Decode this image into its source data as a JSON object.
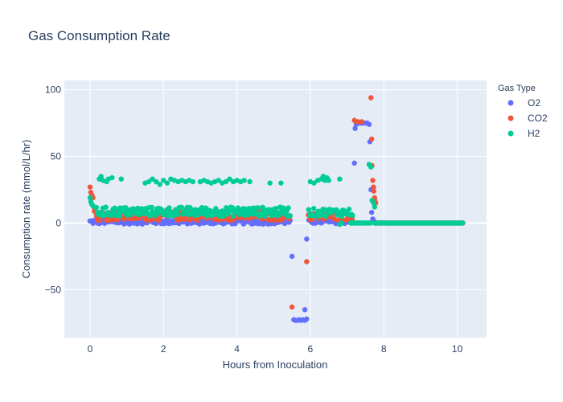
{
  "chart_data": {
    "type": "scatter",
    "title": "Gas Consumption Rate",
    "xlabel": "Hours from Inoculation",
    "ylabel": "Consumption rate (mmol/L/hr)",
    "xlim": [
      -0.7,
      10.8
    ],
    "ylim": [
      -86,
      107
    ],
    "xticks": [
      0,
      2,
      4,
      6,
      8,
      10
    ],
    "yticks": [
      -50,
      0,
      50,
      100
    ],
    "ytick_labels": [
      "−50",
      "0",
      "50",
      "100"
    ],
    "grid": true,
    "legend_title": "Gas Type",
    "legend_position": "top-right",
    "colors": {
      "plot_bg": "#e5ecf6",
      "grid": "#ffffff"
    },
    "series": [
      {
        "name": "O2",
        "color": "#636efa",
        "segments": [
          {
            "x_start": 0.0,
            "x_end": 5.45,
            "step": 0.025,
            "base": 1.0,
            "jitter": 1.8
          },
          {
            "x_start": 5.95,
            "x_end": 7.05,
            "step": 0.03,
            "base": 1.0,
            "jitter": 1.5
          },
          {
            "x_start": 7.75,
            "x_end": 10.15,
            "step": 0.02,
            "base": 0.0,
            "jitter": 0.0
          }
        ],
        "points": [
          [
            5.5,
            -25
          ],
          [
            5.55,
            -72.5
          ],
          [
            5.6,
            -73
          ],
          [
            5.65,
            -73
          ],
          [
            5.7,
            -72.5
          ],
          [
            5.75,
            -73
          ],
          [
            5.8,
            -72.5
          ],
          [
            5.85,
            -73
          ],
          [
            5.9,
            -72
          ],
          [
            5.85,
            -65
          ],
          [
            5.9,
            -12
          ],
          [
            7.2,
            45
          ],
          [
            7.22,
            71
          ],
          [
            7.25,
            74
          ],
          [
            7.3,
            75
          ],
          [
            7.35,
            75
          ],
          [
            7.4,
            75
          ],
          [
            7.45,
            75
          ],
          [
            7.5,
            75
          ],
          [
            7.55,
            75
          ],
          [
            7.6,
            74
          ],
          [
            7.62,
            61
          ],
          [
            7.65,
            25
          ],
          [
            7.67,
            8
          ],
          [
            7.7,
            3
          ],
          [
            7.72,
            2
          ]
        ]
      },
      {
        "name": "CO2",
        "color": "#ef553b",
        "segments": [
          {
            "x_start": 0.15,
            "x_end": 5.45,
            "step": 0.025,
            "base": 5.5,
            "jitter": 3.5
          },
          {
            "x_start": 5.95,
            "x_end": 7.15,
            "step": 0.03,
            "base": 5.0,
            "jitter": 3.0
          },
          {
            "x_start": 7.75,
            "x_end": 10.15,
            "step": 0.02,
            "base": 0.0,
            "jitter": 0.0
          }
        ],
        "points": [
          [
            0.0,
            27
          ],
          [
            0.02,
            23
          ],
          [
            0.05,
            21
          ],
          [
            0.08,
            19
          ],
          [
            0.1,
            12
          ],
          [
            0.12,
            9
          ],
          [
            5.5,
            -63
          ],
          [
            5.9,
            -29
          ],
          [
            7.2,
            77
          ],
          [
            7.25,
            76
          ],
          [
            7.3,
            76
          ],
          [
            7.4,
            76
          ],
          [
            7.65,
            94
          ],
          [
            7.67,
            63
          ],
          [
            7.68,
            43
          ],
          [
            7.7,
            32
          ],
          [
            7.72,
            27
          ],
          [
            7.73,
            24
          ],
          [
            7.75,
            19
          ],
          [
            7.76,
            17
          ],
          [
            7.78,
            15
          ]
        ]
      },
      {
        "name": "H2",
        "color": "#00cc96",
        "segments": [
          {
            "x_start": 0.15,
            "x_end": 5.45,
            "step": 0.025,
            "base": 8.5,
            "jitter": 3.5
          },
          {
            "x_start": 5.95,
            "x_end": 7.15,
            "step": 0.03,
            "base": 8.0,
            "jitter": 3.0
          },
          {
            "x_start": 7.1,
            "x_end": 7.65,
            "step": 0.015,
            "base": 0.0,
            "jitter": 0.0
          },
          {
            "x_start": 7.75,
            "x_end": 10.15,
            "step": 0.02,
            "base": 0.0,
            "jitter": 0.0
          }
        ],
        "points": [
          [
            0.0,
            19
          ],
          [
            0.02,
            16
          ],
          [
            0.05,
            14
          ],
          [
            0.08,
            13
          ],
          [
            0.25,
            33
          ],
          [
            0.3,
            35
          ],
          [
            0.35,
            32
          ],
          [
            0.45,
            31
          ],
          [
            0.5,
            33
          ],
          [
            0.6,
            34
          ],
          [
            0.85,
            33
          ],
          [
            1.5,
            30
          ],
          [
            1.6,
            31
          ],
          [
            1.7,
            33
          ],
          [
            1.8,
            31
          ],
          [
            1.9,
            29
          ],
          [
            2.0,
            32
          ],
          [
            2.1,
            30
          ],
          [
            2.2,
            33
          ],
          [
            2.3,
            32
          ],
          [
            2.4,
            31
          ],
          [
            2.5,
            32
          ],
          [
            2.6,
            31
          ],
          [
            2.7,
            32
          ],
          [
            2.8,
            31
          ],
          [
            3.0,
            31
          ],
          [
            3.1,
            32
          ],
          [
            3.2,
            31
          ],
          [
            3.3,
            30
          ],
          [
            3.4,
            31
          ],
          [
            3.5,
            32
          ],
          [
            3.6,
            30
          ],
          [
            3.7,
            31
          ],
          [
            3.8,
            33
          ],
          [
            3.9,
            31
          ],
          [
            4.0,
            32
          ],
          [
            4.1,
            31
          ],
          [
            4.2,
            32
          ],
          [
            4.35,
            31
          ],
          [
            4.9,
            30
          ],
          [
            5.2,
            30
          ],
          [
            6.0,
            31
          ],
          [
            6.1,
            30
          ],
          [
            6.2,
            32
          ],
          [
            6.3,
            33
          ],
          [
            6.35,
            35
          ],
          [
            6.4,
            32
          ],
          [
            6.45,
            34
          ],
          [
            6.5,
            32
          ],
          [
            6.8,
            33
          ],
          [
            6.8,
            -1
          ],
          [
            6.85,
            0
          ],
          [
            7.6,
            44
          ],
          [
            7.65,
            42
          ],
          [
            7.68,
            17
          ],
          [
            7.72,
            15
          ],
          [
            7.75,
            12
          ]
        ]
      }
    ]
  }
}
